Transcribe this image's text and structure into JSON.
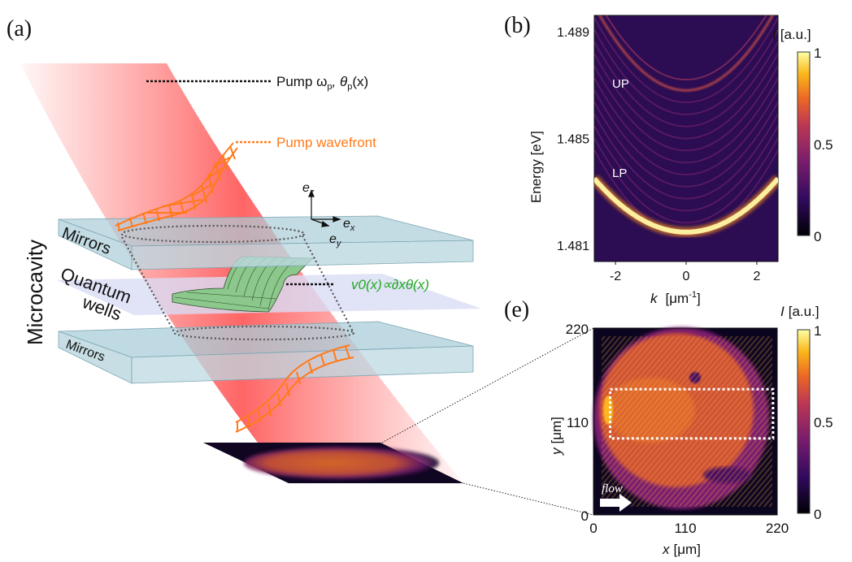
{
  "panel_a": {
    "label": "(a)",
    "pump_label": "Pump ωp, θp(x)",
    "pump_omega": "Pump ω",
    "pump_sub_p": "p",
    "pump_theta": ", θ",
    "pump_x": "(x)",
    "wavefront_label": "Pump wavefront",
    "axis_ez": "e",
    "axis_ez_sub": "z",
    "axis_ex": "e",
    "axis_ex_sub": "x",
    "axis_ey": "e",
    "axis_ey_sub": "y",
    "potential_label": "v0(x)∝∂xθ(x)",
    "potential_parts": [
      "v",
      "0",
      "(x)∝∂",
      "x",
      "θ(x)"
    ],
    "microcavity_label": "Microcavity",
    "mirrors_top": "Mirrors",
    "quantum_label_1": "Quantum",
    "quantum_label_2": "wells",
    "mirrors_bottom": "Mirrors",
    "colors": {
      "beam": "#ff5a5a",
      "wavefront": "#ff7a1a",
      "potential": "#6fb36f",
      "mirror": "#a9cdd9",
      "wells": "#d9dcf5",
      "potential_text": "#22aa22"
    }
  },
  "chart_data": [
    {
      "panel_label": "(b)",
      "type": "heatmap",
      "xlabel": "k",
      "xlabel_unit": "[μm",
      "xlabel_exp": "-1",
      "xlabel_close": "]",
      "ylabel": "Energy [eV]",
      "xlim": [
        -2.6,
        2.6
      ],
      "ylim": [
        1.4804,
        1.4896
      ],
      "xticks": [
        "-2",
        "0",
        "2"
      ],
      "xtick_values": [
        -2,
        0,
        2
      ],
      "yticks": [
        "1.489",
        "1.485",
        "1.481"
      ],
      "ytick_values": [
        1.489,
        1.485,
        1.481
      ],
      "annotations": [
        "UP",
        "LP"
      ],
      "branches": [
        {
          "label": "UP",
          "k0_energy": 1.4868,
          "k_edge": 2.4,
          "edge_energy": 1.4895,
          "intensity": 0.45
        },
        {
          "label": "LP",
          "k0_energy": 1.4815,
          "k_edge": 2.6,
          "edge_energy": 1.4835,
          "intensity": 1.0
        }
      ],
      "colorbar": {
        "label": "I [a.u.]",
        "label_italic": "I",
        "label_unit": "[a.u.]",
        "ticks": [
          "1",
          "0.5",
          "0"
        ],
        "tick_values": [
          1,
          0.5,
          0
        ],
        "range": [
          0,
          1
        ],
        "colormap": "inferno"
      }
    },
    {
      "panel_label": "(e)",
      "type": "heatmap",
      "xlabel": "x",
      "xlabel_unit": "[μm]",
      "ylabel": "y",
      "ylabel_unit": "[μm]",
      "xlim": [
        0,
        220
      ],
      "ylim": [
        0,
        220
      ],
      "xticks": [
        "0",
        "110",
        "220"
      ],
      "xtick_values": [
        0,
        110,
        220
      ],
      "yticks": [
        "220",
        "110",
        "0"
      ],
      "ytick_values": [
        220,
        110,
        0
      ],
      "annotation": "flow",
      "region_box": {
        "x": [
          20,
          215
        ],
        "y": [
          90,
          148
        ]
      },
      "colorbar": {
        "label_italic": "I",
        "label_unit": "[a.u.]",
        "ticks": [
          "1",
          "0.5",
          "0"
        ],
        "tick_values": [
          1,
          0.5,
          0
        ],
        "range": [
          0,
          1
        ],
        "colormap": "inferno"
      }
    }
  ]
}
